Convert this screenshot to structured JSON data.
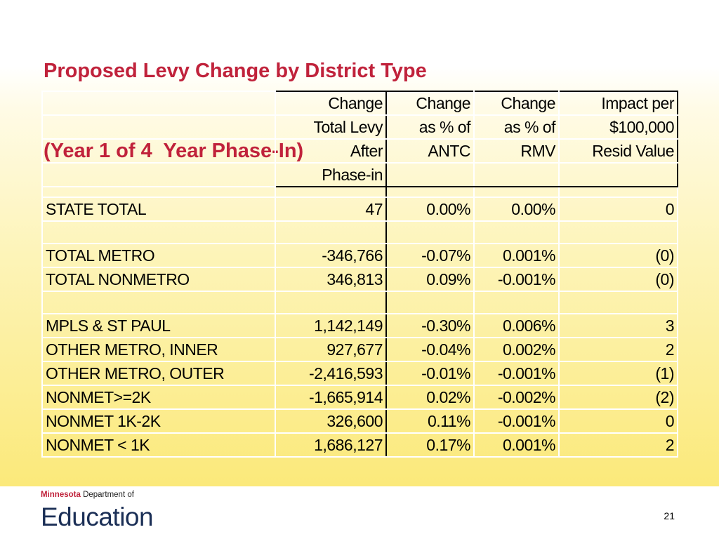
{
  "title_line1": "Proposed Levy Change by District Type",
  "title_line2": "(Year 1 of 4  Year Phase-In)",
  "headers": {
    "col1": [
      "Change",
      "Total Levy",
      "After",
      "Phase-in"
    ],
    "col2": [
      "Change",
      "as % of",
      "ANTC",
      ""
    ],
    "col3": [
      "Change",
      "as % of",
      "RMV",
      ""
    ],
    "col4": [
      "Impact per",
      "$100,000",
      "Resid Value",
      ""
    ]
  },
  "rows": [
    {
      "name": "STATE TOTAL",
      "levy": "47",
      "antc": "0.00%",
      "rmv": "0.00%",
      "impact": "0"
    },
    {
      "name": "TOTAL METRO",
      "levy": "-346,766",
      "antc": "-0.07%",
      "rmv": "0.001%",
      "impact": "(0)"
    },
    {
      "name": "TOTAL NONMETRO",
      "levy": "346,813",
      "antc": "0.09%",
      "rmv": "-0.001%",
      "impact": "(0)"
    },
    {
      "name": "MPLS & ST PAUL",
      "levy": "1,142,149",
      "antc": "-0.30%",
      "rmv": "0.006%",
      "impact": "3"
    },
    {
      "name": "OTHER METRO, INNER",
      "levy": "927,677",
      "antc": "-0.04%",
      "rmv": "0.002%",
      "impact": "2"
    },
    {
      "name": "OTHER METRO, OUTER",
      "levy": "-2,416,593",
      "antc": "-0.01%",
      "rmv": "-0.001%",
      "impact": "(1)"
    },
    {
      "name": "NONMET>=2K",
      "levy": "-1,665,914",
      "antc": "0.02%",
      "rmv": "-0.002%",
      "impact": "(2)"
    },
    {
      "name": "NONMET 1K-2K",
      "levy": "326,600",
      "antc": "0.11%",
      "rmv": "-0.001%",
      "impact": "0"
    },
    {
      "name": "NONMET < 1K",
      "levy": "1,686,127",
      "antc": "0.17%",
      "rmv": "0.001%",
      "impact": "2"
    }
  ],
  "footer": {
    "logo_top_bold": "Minnesota",
    "logo_top_rest": " Department of",
    "logo_main": "Education",
    "page_number": "21"
  },
  "colors": {
    "title": "#c0223b",
    "logo_text": "#1b2f56",
    "background_bottom": "#fbe97a"
  }
}
